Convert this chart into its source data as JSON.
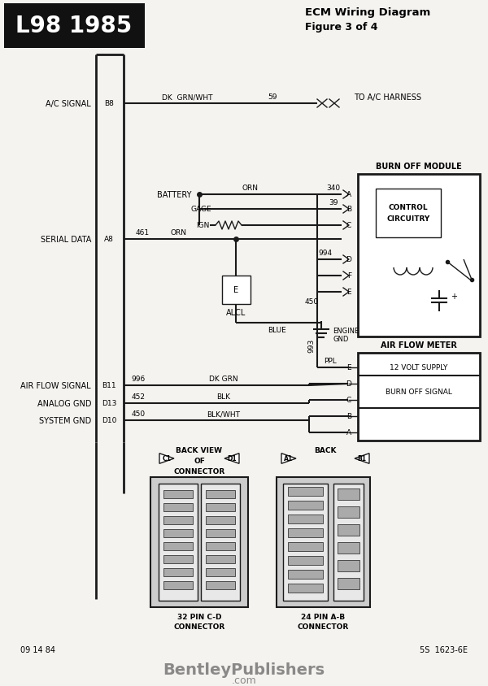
{
  "title": "ECM Wiring Diagram",
  "subtitle": "Figure 3 of 4",
  "header_label": "L98 1985",
  "bg_color": "#f5f3f0",
  "header_bg": "#1a1a1a",
  "line_color": "#1a1a1a",
  "watermark": "BentleyPublishers",
  "watermark2": ".com",
  "bottom_left": "09 14 84",
  "bottom_right": "5S  1623-6E"
}
